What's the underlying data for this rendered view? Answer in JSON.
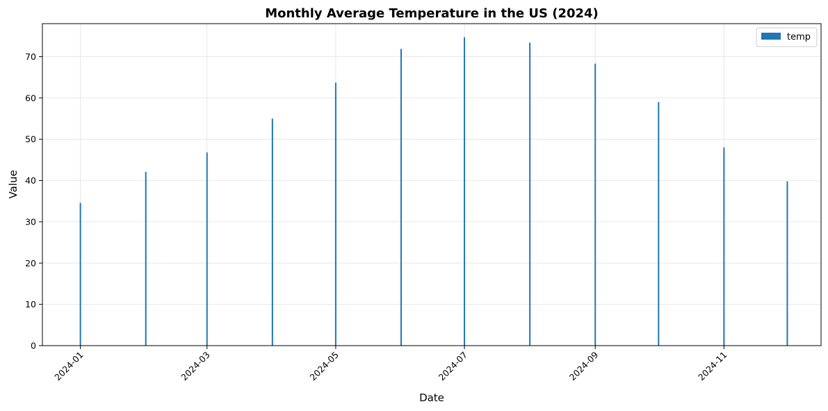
{
  "chart_data": {
    "type": "bar",
    "title": "Monthly Average Temperature in the US (2024)",
    "xlabel": "Date",
    "ylabel": "Value",
    "x_axis_type": "date",
    "xlim": [
      "2023-12-14",
      "2024-12-17"
    ],
    "ylim": [
      0,
      78
    ],
    "yticks": [
      0,
      10,
      20,
      30,
      40,
      50,
      60,
      70
    ],
    "xticks": [
      "2024-01",
      "2024-03",
      "2024-05",
      "2024-07",
      "2024-09",
      "2024-11"
    ],
    "grid": true,
    "legend": {
      "position": "top-right",
      "entries": [
        "temp"
      ]
    },
    "colors": {
      "temp": "#1f77b4"
    },
    "series": [
      {
        "name": "temp",
        "x": [
          "2024-01-01",
          "2024-02-01",
          "2024-03-01",
          "2024-04-01",
          "2024-05-01",
          "2024-06-01",
          "2024-07-01",
          "2024-08-01",
          "2024-09-01",
          "2024-10-01",
          "2024-11-01",
          "2024-12-01"
        ],
        "values": [
          34.6,
          42.1,
          46.8,
          55.0,
          63.7,
          71.9,
          74.7,
          73.4,
          68.3,
          59.0,
          48.0,
          39.8
        ]
      }
    ]
  }
}
